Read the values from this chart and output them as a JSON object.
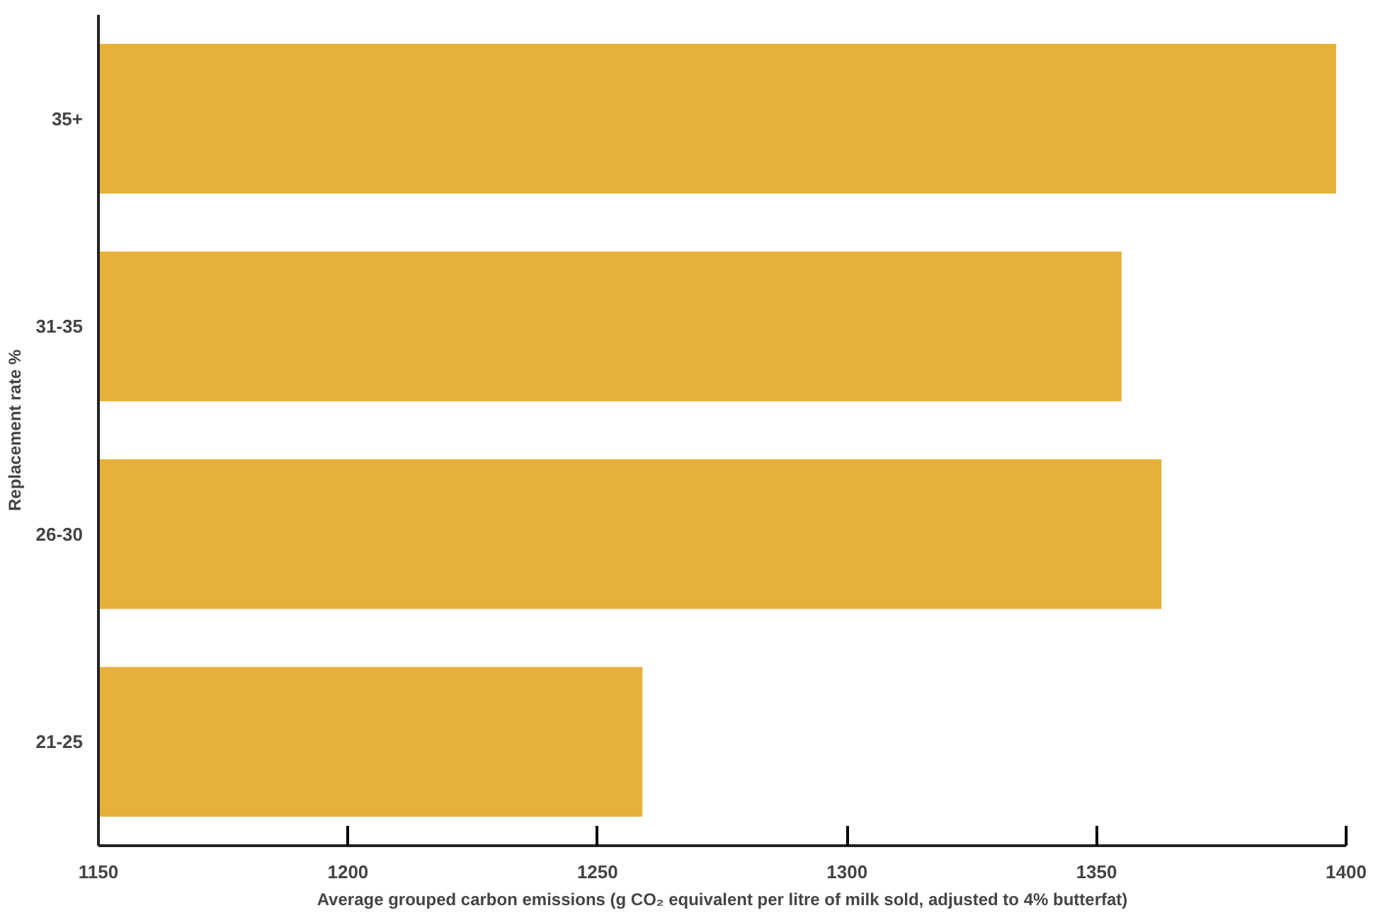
{
  "chart_data": {
    "type": "bar",
    "orientation": "horizontal",
    "categories": [
      "35+",
      "31-35",
      "26-30",
      "21-25"
    ],
    "values": [
      1398,
      1355,
      1363,
      1259
    ],
    "color": "#e6b03a",
    "xlabel": "Average grouped carbon emissions (g CO₂ equivalent per litre of milk sold, adjusted to 4% butterfat)",
    "ylabel": "Replacement rate %",
    "xlim": [
      1150,
      1400
    ],
    "xticks": [
      1150,
      1200,
      1250,
      1300,
      1350,
      1400
    ]
  }
}
